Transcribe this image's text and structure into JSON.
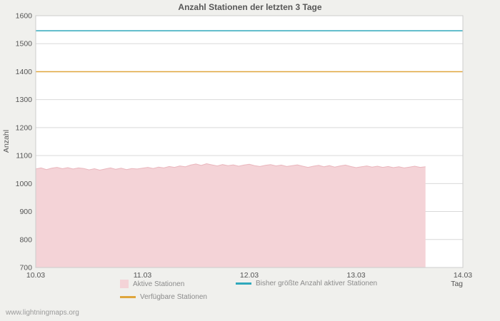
{
  "page": {
    "footer": "www.lightningmaps.org"
  },
  "chart_data": {
    "type": "area",
    "title": "Anzahl Stationen der letzten 3 Tage",
    "xlabel": "Tag",
    "ylabel": "Anzahl",
    "ylim": [
      700,
      1600
    ],
    "yticks": [
      700,
      800,
      900,
      1000,
      1100,
      1200,
      1300,
      1400,
      1500,
      1600
    ],
    "xticks": [
      "10.03",
      "11.03",
      "12.03",
      "13.03",
      "14.03"
    ],
    "x_range_days": [
      0,
      4
    ],
    "grid": true,
    "legend_position": "bottom",
    "colors": {
      "grid": "#d9d9d9",
      "axis_text": "#555555",
      "plot_border": "#cccccc",
      "page_background": "#f0f0ed",
      "plot_background": "#ffffff"
    },
    "series": [
      {
        "name": "Aktive Stationen",
        "type": "area",
        "fill_color": "#f4d3d7",
        "line_color": "#eab6bd",
        "x_start": 0,
        "x_step": 0.05,
        "values": [
          1052,
          1056,
          1050,
          1055,
          1058,
          1053,
          1057,
          1052,
          1056,
          1054,
          1049,
          1053,
          1048,
          1052,
          1056,
          1051,
          1055,
          1050,
          1054,
          1052,
          1055,
          1058,
          1054,
          1059,
          1056,
          1061,
          1058,
          1063,
          1060,
          1066,
          1070,
          1065,
          1071,
          1067,
          1063,
          1068,
          1064,
          1067,
          1062,
          1066,
          1069,
          1064,
          1061,
          1065,
          1068,
          1063,
          1066,
          1061,
          1064,
          1067,
          1062,
          1058,
          1062,
          1065,
          1060,
          1064,
          1059,
          1063,
          1066,
          1061,
          1057,
          1060,
          1063,
          1059,
          1062,
          1058,
          1061,
          1057,
          1060,
          1056,
          1059,
          1062,
          1058,
          1060
        ]
      },
      {
        "name": "Bisher größte Anzahl aktiver Stationen",
        "type": "hline",
        "line_color": "#2fa8bc",
        "value": 1546
      },
      {
        "name": "Verfügbare Stationen",
        "type": "hline",
        "line_color": "#dfa63c",
        "value": 1400
      }
    ]
  }
}
